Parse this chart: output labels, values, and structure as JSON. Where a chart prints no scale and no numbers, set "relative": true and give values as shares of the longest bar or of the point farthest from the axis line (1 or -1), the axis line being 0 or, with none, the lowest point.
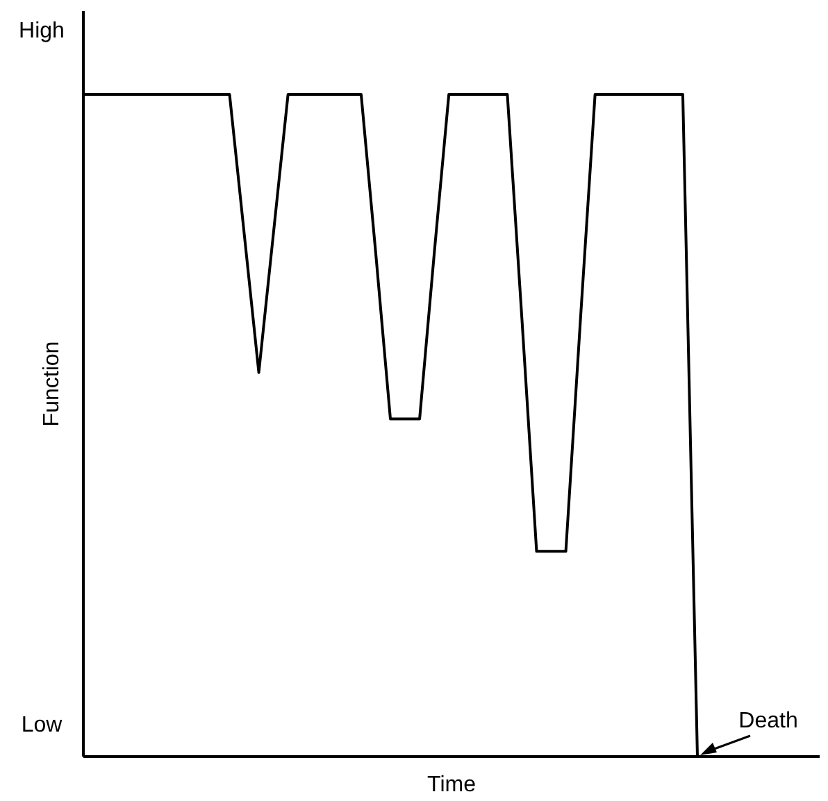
{
  "chart_data": {
    "type": "line",
    "relative": true,
    "xlabel": "Time",
    "ylabel": "Function",
    "categories": [
      null,
      null,
      null,
      null,
      null,
      null,
      null,
      null,
      null,
      null,
      null,
      null,
      null,
      null,
      null,
      null,
      null,
      null,
      null,
      null,
      null,
      null,
      null,
      null,
      null,
      null,
      null,
      null,
      null,
      null,
      null,
      null,
      null,
      null,
      null,
      null,
      null,
      null,
      null,
      null,
      null,
      null,
      null
    ],
    "series": [
      {
        "color": "#000000",
        "values": [
          1,
          1,
          1,
          1,
          1,
          1,
          1,
          1,
          1,
          1,
          1,
          0.79,
          0.58,
          0.79,
          1,
          1,
          1,
          1,
          1,
          1,
          0.76,
          0.51,
          0.51,
          0.51,
          0.76,
          1,
          1,
          1,
          1,
          1,
          0.66,
          0.31,
          0.31,
          0.31,
          0.66,
          1,
          1,
          1,
          1,
          1,
          1,
          1,
          0
        ]
      }
    ],
    "annotations": [
      "High",
      "Low",
      "Death"
    ]
  }
}
